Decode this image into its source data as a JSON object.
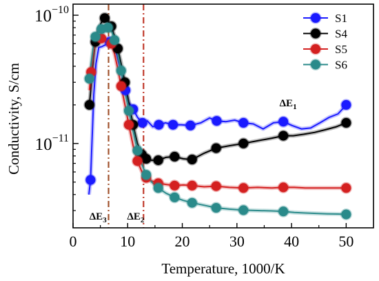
{
  "chart_data": {
    "type": "line",
    "xlabel": "Temperature, 1000/K",
    "ylabel": "Conductivity, S/cm",
    "xlim": [
      0,
      55
    ],
    "ylim": [
      2.2e-12,
      1.22e-10
    ],
    "yscale": "log",
    "x_ticks": [
      0,
      10,
      20,
      30,
      40,
      50
    ],
    "y_tick_labels": [
      {
        "value": 1e-10,
        "base": "10",
        "exp": "−10"
      },
      {
        "value": 1e-11,
        "base": "10",
        "exp": "−11"
      }
    ],
    "legend_position": "top-right",
    "vlines": [
      {
        "x": 6.5,
        "color": "#a0522d"
      },
      {
        "x": 12.9,
        "color": "#c0392b"
      }
    ],
    "annotations": [
      {
        "id": "dE1",
        "main": "ΔE",
        "sub": "1",
        "x": 37.8,
        "y": 1.95e-11
      },
      {
        "id": "dE3",
        "main": "ΔE",
        "sub": "3",
        "x": 3.0,
        "y": 2.55e-12
      },
      {
        "id": "dE2",
        "main": "ΔE",
        "sub": "2",
        "x": 9.9,
        "y": 2.55e-12
      }
    ],
    "series": [
      {
        "name": "S1",
        "color": "#1a1aff",
        "x": [
          2.9,
          3.2,
          3.5,
          3.8,
          4.2,
          4.7,
          5.3,
          6.0,
          6.7,
          7.2,
          7.8,
          8.4,
          9.0,
          9.6,
          10.2,
          11.0,
          11.8,
          12.7,
          13.6,
          14.6,
          15.7,
          16.9,
          18.3,
          19.8,
          21.5,
          23.4,
          25.0,
          26.3,
          28.0,
          29.6,
          31.2,
          33.0,
          34.8,
          36.7,
          38.5,
          40.1,
          41.8,
          43.5,
          45.2,
          46.9,
          48.5,
          50.0
        ],
        "y": [
          4e-12,
          5.2e-12,
          1.1e-11,
          2.4e-11,
          4.2e-11,
          5.6e-11,
          5.7e-11,
          5.9e-11,
          6.2e-11,
          5.8e-11,
          5.3e-11,
          4.2e-11,
          3.4e-11,
          2.6e-11,
          2.1e-11,
          1.85e-11,
          1.6e-11,
          1.45e-11,
          1.5e-11,
          1.35e-11,
          1.4e-11,
          1.45e-11,
          1.4e-11,
          1.4e-11,
          1.38e-11,
          1.45e-11,
          1.58e-11,
          1.5e-11,
          1.48e-11,
          1.52e-11,
          1.45e-11,
          1.42e-11,
          1.3e-11,
          1.45e-11,
          1.48e-11,
          1.38e-11,
          1.3e-11,
          1.32e-11,
          1.45e-11,
          1.6e-11,
          1.7e-11,
          2e-11
        ],
        "markers": [
          3.2,
          6.7,
          9.6,
          11.0,
          12.7,
          15.7,
          18.3,
          21.5,
          26.3,
          31.2,
          38.5,
          50.0
        ]
      },
      {
        "name": "S4",
        "color": "#000000",
        "x": [
          3.0,
          3.3,
          3.7,
          4.1,
          4.6,
          5.2,
          5.8,
          6.4,
          7.0,
          7.6,
          8.2,
          8.8,
          9.5,
          10.2,
          11.0,
          11.8,
          12.6,
          13.4,
          14.4,
          15.6,
          17.0,
          18.6,
          20.2,
          21.8,
          24.0,
          26.2,
          28.6,
          31.2,
          33.8,
          36.4,
          38.5,
          40.3,
          42.2,
          44.2,
          46.2,
          48.2,
          50.0
        ],
        "y": [
          2e-11,
          2.8e-11,
          4.5e-11,
          6.2e-11,
          7.8e-11,
          8.8e-11,
          9.5e-11,
          9e-11,
          8.2e-11,
          6.9e-11,
          5.5e-11,
          4.2e-11,
          3e-11,
          2.1e-11,
          1.4e-11,
          1e-11,
          8.2e-12,
          7.6e-12,
          7.4e-12,
          7.4e-12,
          7.8e-12,
          7.9e-12,
          7.6e-12,
          7.5e-12,
          8.4e-12,
          9.2e-12,
          9.6e-12,
          1e-11,
          1.05e-11,
          1.1e-11,
          1.15e-11,
          1.15e-11,
          1.18e-11,
          1.22e-11,
          1.28e-11,
          1.35e-11,
          1.45e-11
        ],
        "markers": [
          3.0,
          4.1,
          5.8,
          7.0,
          8.2,
          9.5,
          11.0,
          12.6,
          13.4,
          15.6,
          18.6,
          21.8,
          26.2,
          31.2,
          38.5,
          50.0
        ]
      },
      {
        "name": "S5",
        "color": "#d42020",
        "x": [
          3.0,
          3.3,
          3.7,
          4.1,
          4.6,
          5.2,
          5.8,
          6.4,
          7.0,
          7.6,
          8.2,
          8.8,
          9.5,
          10.2,
          11.0,
          11.8,
          12.6,
          13.4,
          14.4,
          15.6,
          17.0,
          18.6,
          20.2,
          21.8,
          24.0,
          26.2,
          28.6,
          31.2,
          33.8,
          36.4,
          38.5,
          40.5,
          42.5,
          44.5,
          46.5,
          48.5,
          50.0
        ],
        "y": [
          2.6e-11,
          3.6e-11,
          5e-11,
          6.2e-11,
          6.4e-11,
          6.6e-11,
          6.5e-11,
          6.3e-11,
          6e-11,
          5e-11,
          3.8e-11,
          2.8e-11,
          2e-11,
          1.4e-11,
          9.6e-12,
          7.3e-12,
          6e-12,
          5.4e-12,
          5.1e-12,
          4.9e-12,
          4.8e-12,
          4.7e-12,
          4.75e-12,
          4.7e-12,
          4.6e-12,
          4.65e-12,
          4.55e-12,
          4.5e-12,
          4.55e-12,
          4.5e-12,
          4.55e-12,
          4.55e-12,
          4.5e-12,
          4.5e-12,
          4.5e-12,
          4.5e-12,
          4.5e-12
        ],
        "markers": [
          3.3,
          5.2,
          7.0,
          8.8,
          10.2,
          11.8,
          13.4,
          15.6,
          18.6,
          21.8,
          26.2,
          31.2,
          38.5,
          50.0
        ]
      },
      {
        "name": "S6",
        "color": "#2a8a8a",
        "x": [
          3.0,
          3.3,
          3.7,
          4.1,
          4.6,
          5.2,
          5.8,
          6.4,
          7.0,
          7.6,
          8.2,
          8.8,
          9.5,
          10.2,
          11.0,
          11.8,
          12.6,
          13.4,
          14.4,
          15.6,
          17.0,
          18.6,
          20.2,
          21.8,
          24.0,
          26.2,
          28.6,
          31.2,
          33.8,
          36.4,
          38.5,
          40.5,
          42.5,
          44.5,
          46.5,
          48.5,
          50.0
        ],
        "y": [
          3.2e-11,
          4.2e-11,
          5.6e-11,
          6.8e-11,
          7.4e-11,
          7.8e-11,
          8e-11,
          8e-11,
          7.7e-11,
          6.4e-11,
          4.9e-11,
          3.7e-11,
          2.6e-11,
          1.8e-11,
          1.25e-11,
          8.8e-12,
          6.9e-12,
          5.7e-12,
          5e-12,
          4.5e-12,
          4.1e-12,
          3.8e-12,
          3.6e-12,
          3.45e-12,
          3.3e-12,
          3.15e-12,
          3.08e-12,
          3.02e-12,
          3e-12,
          2.98e-12,
          2.95e-12,
          2.9e-12,
          2.87e-12,
          2.85e-12,
          2.83e-12,
          2.82e-12,
          2.8e-12
        ],
        "markers": [
          3.0,
          4.1,
          5.2,
          6.4,
          7.6,
          8.8,
          10.2,
          11.8,
          13.4,
          15.6,
          18.6,
          21.8,
          26.2,
          31.2,
          38.5,
          50.0
        ]
      }
    ]
  }
}
